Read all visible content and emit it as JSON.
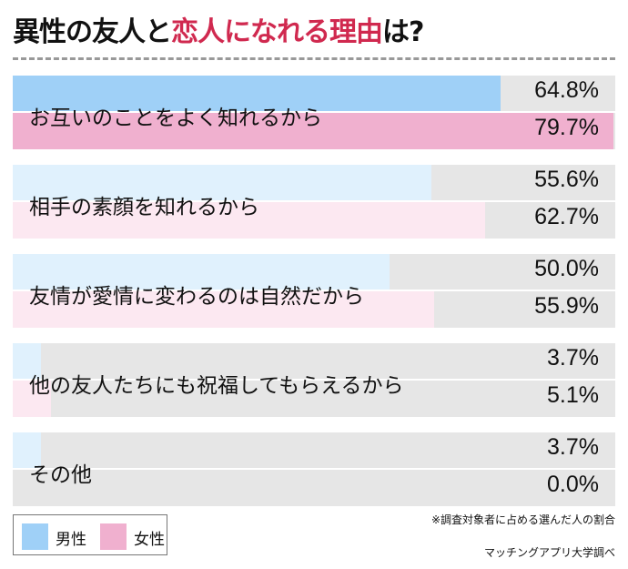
{
  "title": {
    "part1": "異性の友人と",
    "part2": "恋人になれる理由",
    "part3": "は?"
  },
  "colors": {
    "male": "#9fd0f7",
    "female": "#f0b0cf",
    "male_light": "#e0f1fd",
    "female_light": "#fce8f1",
    "track": "#e6e6e6",
    "accent": "#d0294f"
  },
  "chart_data": {
    "type": "bar",
    "orientation": "horizontal",
    "title": "異性の友人と恋人になれる理由は?",
    "xlim": [
      0,
      80
    ],
    "categories": [
      "お互いのことをよく知れるから",
      "相手の素顔を知れるから",
      "友情が愛情に変わるのは自然だから",
      "他の友人たちにも祝福してもらえるから",
      "その他"
    ],
    "series": [
      {
        "name": "男性",
        "values": [
          64.8,
          55.6,
          50.0,
          3.7,
          3.7
        ],
        "labels": [
          "64.8%",
          "55.6%",
          "50.0%",
          "3.7%",
          "3.7%"
        ]
      },
      {
        "name": "女性",
        "values": [
          79.7,
          62.7,
          55.9,
          5.1,
          0.0
        ],
        "labels": [
          "79.7%",
          "62.7%",
          "55.9%",
          "5.1%",
          "0.0%"
        ]
      }
    ],
    "legend": "bottom-left",
    "highlighted_category": 0
  },
  "notes": {
    "footnote": "※調査対象者に占める選んだ人の割合",
    "source": "マッチングアプリ大学調べ"
  }
}
